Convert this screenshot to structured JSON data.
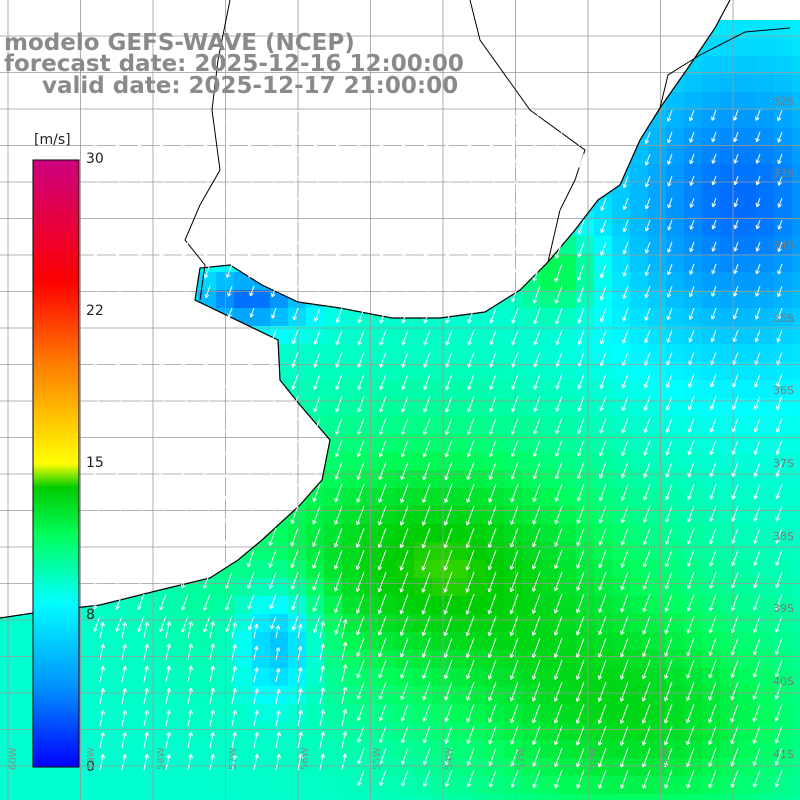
{
  "header": {
    "line1": "modelo GEFS-WAVE (NCEP)",
    "line2": "forecast date: 2025-12-16 12:00:00",
    "line3": "valid date: 2025-12-17 21:00:00"
  },
  "colorbar": {
    "units": "[m/s]",
    "ticks": [
      "30",
      "22",
      "15",
      "8",
      "0"
    ],
    "tick_values": [
      30,
      22,
      15,
      8,
      0
    ],
    "min": 0,
    "max": 30,
    "colors": [
      "#0000ff",
      "#0090ff",
      "#00ffff",
      "#00ff40",
      "#00cc00",
      "#ffff00",
      "#ff8000",
      "#ff0000",
      "#cc0080"
    ]
  },
  "map_labels": {
    "lat": [
      "32S",
      "33S",
      "34S",
      "35S",
      "36S",
      "37S",
      "38S",
      "39S",
      "40S",
      "41S"
    ],
    "lon": [
      "60W",
      "59W",
      "58W",
      "57W",
      "56W",
      "55W",
      "54W",
      "53W",
      "52W",
      "51W"
    ]
  },
  "colors": {
    "land": "#ffffff",
    "grid": "#9a9a9a",
    "coast": "#000000",
    "arrow": "#ffffff",
    "title": "#8a8a8a"
  }
}
